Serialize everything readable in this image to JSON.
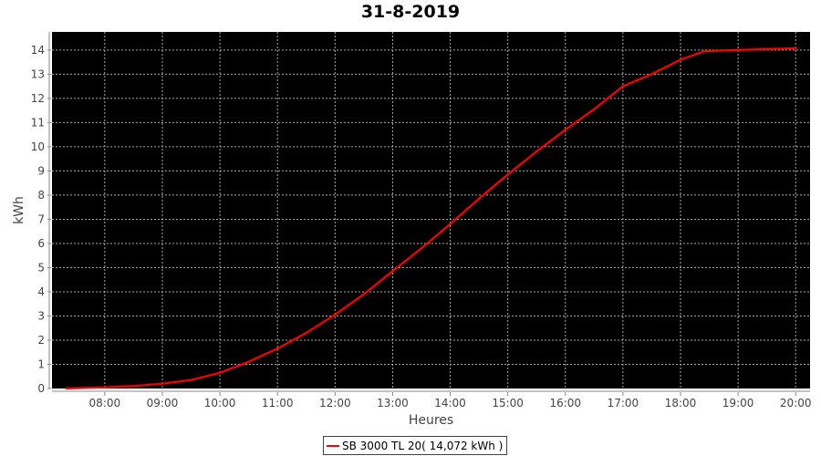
{
  "chart_data": {
    "type": "line",
    "title": "31-8-2019",
    "xlabel": "Heures",
    "ylabel": "kWh",
    "xlim": [
      "07:05",
      "20:15"
    ],
    "ylim": [
      0,
      14.75
    ],
    "x_ticks": [
      "08:00",
      "09:00",
      "10:00",
      "11:00",
      "12:00",
      "13:00",
      "14:00",
      "15:00",
      "16:00",
      "17:00",
      "18:00",
      "19:00",
      "20:00"
    ],
    "y_ticks": [
      0,
      1,
      2,
      3,
      4,
      5,
      6,
      7,
      8,
      9,
      10,
      11,
      12,
      13,
      14
    ],
    "grid": true,
    "background": "#000000",
    "legend_position": "bottom",
    "series": [
      {
        "name": "SB 3000 TL 20( 14,072 kWh )",
        "color": "#ff0000",
        "x": [
          "07:20",
          "08:00",
          "08:30",
          "09:00",
          "09:30",
          "10:00",
          "10:30",
          "11:00",
          "11:30",
          "12:00",
          "12:30",
          "13:00",
          "13:30",
          "14:00",
          "14:30",
          "15:00",
          "15:30",
          "16:00",
          "16:30",
          "17:00",
          "17:15",
          "17:30",
          "18:00",
          "18:25",
          "19:00",
          "19:30",
          "20:00"
        ],
        "values": [
          0,
          0.05,
          0.1,
          0.2,
          0.35,
          0.65,
          1.1,
          1.65,
          2.3,
          3.05,
          3.9,
          4.85,
          5.8,
          6.8,
          7.85,
          8.85,
          9.8,
          10.7,
          11.55,
          12.5,
          12.75,
          13.0,
          13.6,
          13.95,
          14.0,
          14.04,
          14.07
        ]
      }
    ]
  }
}
